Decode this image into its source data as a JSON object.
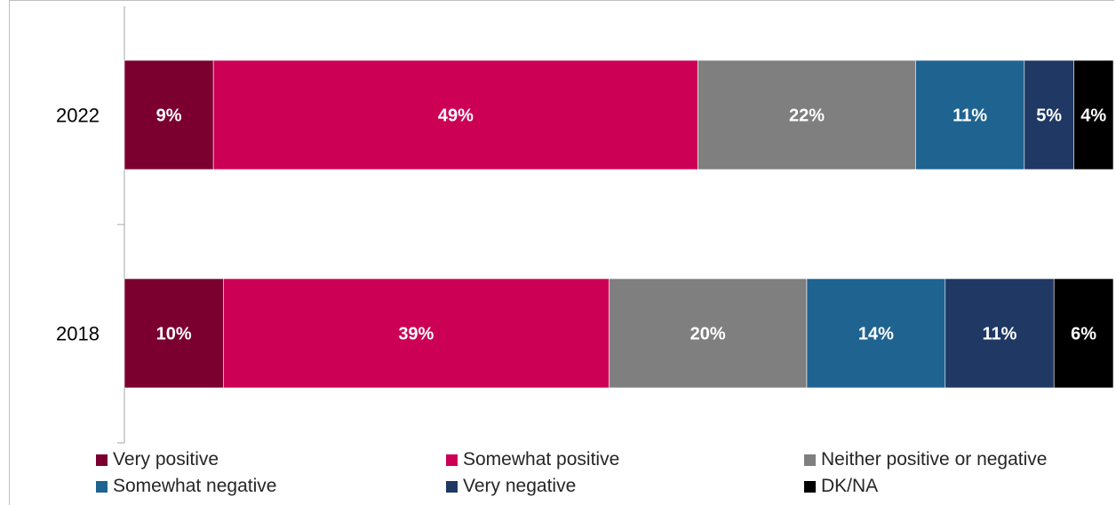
{
  "chart_data": {
    "type": "bar",
    "orientation": "horizontal",
    "stacked": true,
    "categories": [
      "2022",
      "2018"
    ],
    "series": [
      {
        "name": "Very positive",
        "color": "#7b0030",
        "values": [
          9,
          10
        ],
        "labels": [
          "9%",
          "10%"
        ]
      },
      {
        "name": "Somewhat positive",
        "color": "#cc0055",
        "values": [
          49,
          39
        ],
        "labels": [
          "49%",
          "39%"
        ]
      },
      {
        "name": "Neither positive or negative",
        "color": "#7f7f7f",
        "values": [
          22,
          20
        ],
        "labels": [
          "22%",
          "20%"
        ]
      },
      {
        "name": "Somewhat negative",
        "color": "#1f6391",
        "values": [
          11,
          14
        ],
        "labels": [
          "11%",
          "14%"
        ]
      },
      {
        "name": "Very negative",
        "color": "#1f3864",
        "values": [
          5,
          11
        ],
        "labels": [
          "5%",
          "11%"
        ]
      },
      {
        "name": "DK/NA",
        "color": "#000000",
        "values": [
          4,
          6
        ],
        "labels": [
          "4%",
          "6%"
        ]
      }
    ],
    "xlim": [
      0,
      100
    ],
    "grid": false,
    "legend_position": "bottom"
  }
}
